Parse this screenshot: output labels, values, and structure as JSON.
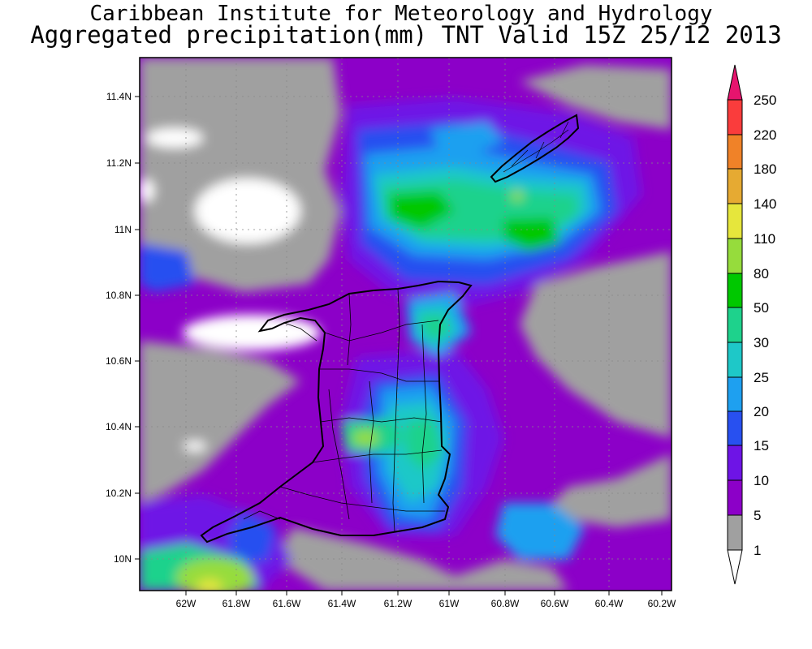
{
  "title": {
    "line1": "Caribbean Institute for Meteorology and Hydrology",
    "line2": "Aggregated precipitation(mm) TNT Valid 15Z 25/12 2013"
  },
  "map": {
    "lon_ticks": [
      "62W",
      "61.8W",
      "61.6W",
      "61.4W",
      "61.2W",
      "61W",
      "60.8W",
      "60.6W",
      "60.4W",
      "60.2W"
    ],
    "lat_ticks": [
      "11.4N",
      "11.2N",
      "11N",
      "10.8N",
      "10.6N",
      "10.4N",
      "10.2N",
      "10N"
    ]
  },
  "colorbar": {
    "labels": [
      "1",
      "5",
      "10",
      "15",
      "20",
      "25",
      "30",
      "50",
      "80",
      "110",
      "140",
      "180",
      "220",
      "250"
    ],
    "colors": [
      "#ffffff",
      "#a0a0a0",
      "#8c00c8",
      "#6e14e6",
      "#2850f0",
      "#1ea0f0",
      "#1ec8c8",
      "#1ed28c",
      "#00c800",
      "#96dc3c",
      "#e6e63c",
      "#e6aa32",
      "#f08228",
      "#fa3c3c",
      "#e6146e"
    ]
  }
}
